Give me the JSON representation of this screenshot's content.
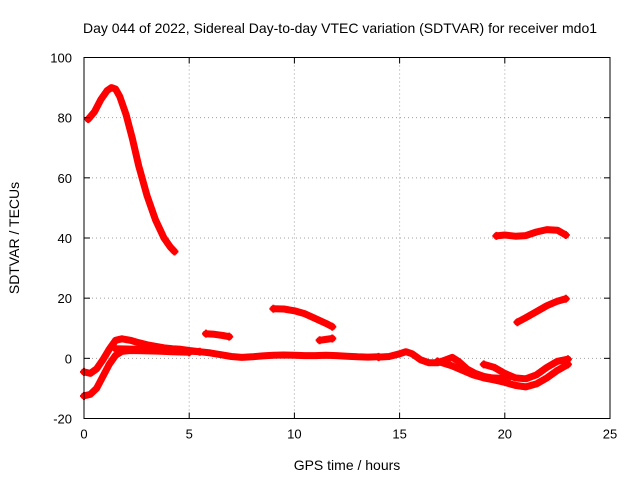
{
  "chart_data": {
    "type": "line",
    "title": "Day 044 of 2022, Sidereal Day-to-day VTEC variation (SDTVAR) for receiver mdo1",
    "xlabel": "GPS time / hours",
    "ylabel": "SDTVAR / TECUs",
    "xlim": [
      0,
      25
    ],
    "ylim": [
      -20,
      100
    ],
    "xticks": [
      0,
      5,
      10,
      15,
      20,
      25
    ],
    "yticks": [
      -20,
      0,
      20,
      40,
      60,
      80,
      100
    ],
    "xtick_labels": [
      "0",
      "5",
      "10",
      "15",
      "20",
      "25"
    ],
    "ytick_labels": [
      "-20",
      "0",
      "20",
      "40",
      "60",
      "80",
      "100"
    ],
    "grid": true,
    "legend": "none",
    "series_color": "#ff0000",
    "series": [
      {
        "name": "arc-high-peak",
        "x": [
          0.2,
          0.5,
          0.8,
          1.1,
          1.3,
          1.5,
          1.7,
          2.0,
          2.3,
          2.6,
          3.0,
          3.4,
          3.8,
          4.1,
          4.3
        ],
        "y": [
          79.5,
          82,
          86,
          89,
          90,
          89.5,
          87,
          81,
          73,
          64,
          54,
          46,
          40,
          37,
          35.5
        ]
      },
      {
        "name": "arc-low-rise",
        "x": [
          0.0,
          0.3,
          0.6,
          0.9,
          1.2,
          1.5,
          1.8,
          2.2,
          2.6,
          3.0,
          3.4,
          3.8,
          4.2,
          4.6,
          5.0,
          5.5
        ],
        "y": [
          -4.5,
          -5,
          -3.5,
          -0.5,
          3,
          6,
          6.5,
          6.0,
          5.2,
          4.5,
          4.0,
          3.5,
          3.2,
          3.0,
          2.6,
          2.2
        ]
      },
      {
        "name": "arc-low-dip",
        "x": [
          0.0,
          0.3,
          0.6,
          0.9,
          1.2,
          1.5,
          1.8,
          2.2,
          2.8,
          3.5,
          4.2,
          5.0
        ],
        "y": [
          -12.5,
          -12,
          -10,
          -6,
          -2,
          1,
          2.3,
          2.6,
          2.5,
          2.4,
          2.2,
          2.0
        ]
      },
      {
        "name": "arc-main-band",
        "x": [
          1.5,
          2.5,
          3.5,
          4.5,
          5.0,
          5.5,
          6.0,
          6.5,
          7.0,
          7.5,
          8.0,
          8.5,
          9.0,
          9.5,
          10.0,
          10.5,
          11.0,
          11.5,
          12.0,
          12.5,
          13.0,
          13.5,
          14.0
        ],
        "y": [
          3.2,
          3.0,
          2.8,
          2.6,
          2.4,
          2.2,
          1.8,
          1.2,
          0.6,
          0.3,
          0.5,
          0.8,
          1.0,
          1.1,
          1.0,
          0.9,
          0.9,
          1.0,
          0.9,
          0.7,
          0.5,
          0.4,
          0.5
        ]
      },
      {
        "name": "arc-small-6h",
        "x": [
          5.8,
          6.2,
          6.6,
          6.9
        ],
        "y": [
          8.2,
          8.0,
          7.6,
          7.2
        ]
      },
      {
        "name": "arc-mid-9h",
        "x": [
          9.0,
          9.5,
          10.0,
          10.5,
          11.0,
          11.5,
          11.8
        ],
        "y": [
          16.5,
          16.4,
          15.8,
          14.8,
          13.2,
          11.6,
          10.5
        ]
      },
      {
        "name": "arc-small-11h",
        "x": [
          11.2,
          11.5,
          11.8
        ],
        "y": [
          6.0,
          6.3,
          6.6
        ]
      },
      {
        "name": "arc-afternoon-wave",
        "x": [
          14.0,
          14.5,
          15.0,
          15.3,
          15.6,
          16.0,
          16.4,
          16.8,
          17.2,
          17.5,
          17.8,
          18.2,
          18.6,
          19.0,
          19.4,
          19.8,
          20.2
        ],
        "y": [
          0.4,
          0.6,
          1.5,
          2.2,
          1.5,
          -0.5,
          -1.5,
          -1.5,
          -0.5,
          0.3,
          -1.0,
          -3.5,
          -5.0,
          -6.0,
          -6.5,
          -6.6,
          -6.3
        ]
      },
      {
        "name": "arc-evening-lower",
        "x": [
          16.8,
          17.5,
          18.0,
          18.5,
          19.0,
          19.5,
          20.0,
          20.5,
          21.0,
          21.5,
          22.0,
          22.5,
          23.0
        ],
        "y": [
          -1.0,
          -2.5,
          -4.0,
          -5.5,
          -6.5,
          -7.2,
          -8.0,
          -9.0,
          -9.5,
          -8.5,
          -6.5,
          -4.0,
          -2.0
        ]
      },
      {
        "name": "arc-evening-rise",
        "x": [
          19.0,
          19.5,
          20.0,
          20.5,
          21.0,
          21.5,
          22.0,
          22.5,
          23.0
        ],
        "y": [
          -2.0,
          -3.0,
          -5.0,
          -6.5,
          -6.8,
          -5.5,
          -3.0,
          -1.0,
          -0.3
        ]
      },
      {
        "name": "arc-evening-high",
        "x": [
          19.6,
          20.0,
          20.5,
          21.0,
          21.5,
          22.0,
          22.5,
          22.9
        ],
        "y": [
          40.7,
          41.0,
          40.6,
          40.8,
          42.0,
          42.8,
          42.6,
          41.0
        ]
      },
      {
        "name": "arc-evening-mid",
        "x": [
          20.6,
          21.0,
          21.5,
          22.0,
          22.5,
          22.9
        ],
        "y": [
          12.0,
          13.5,
          15.5,
          17.5,
          19.0,
          19.8
        ]
      }
    ]
  }
}
